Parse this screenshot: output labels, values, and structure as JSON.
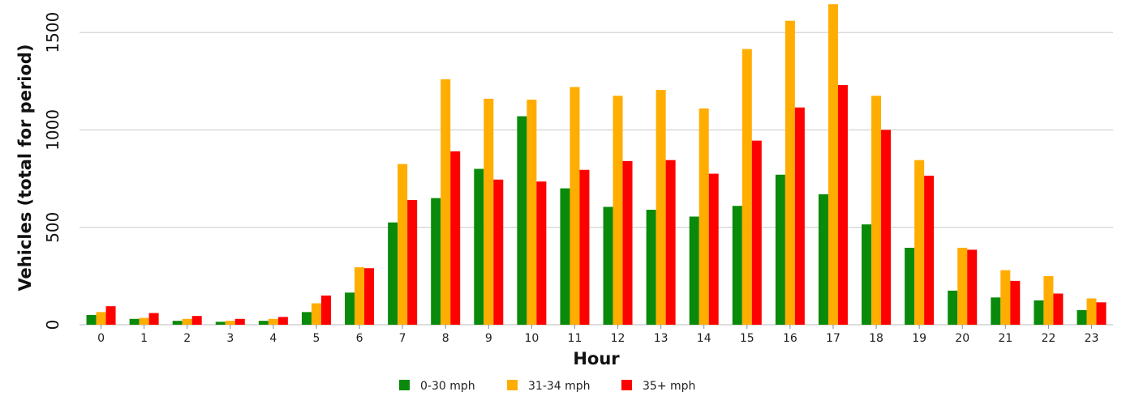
{
  "chart_data": {
    "type": "bar",
    "xlabel": "Hour",
    "ylabel": "Vehicles (total for period)",
    "ylim": [
      0,
      1650
    ],
    "yticks": [
      0,
      500,
      1000,
      1500
    ],
    "grid": true,
    "legend_position": "bottom",
    "categories": [
      "0",
      "1",
      "2",
      "3",
      "4",
      "5",
      "6",
      "7",
      "8",
      "9",
      "10",
      "11",
      "12",
      "13",
      "14",
      "15",
      "16",
      "17",
      "18",
      "19",
      "20",
      "21",
      "22",
      "23"
    ],
    "series": [
      {
        "name": "0-30 mph",
        "color": "#0a8a0a",
        "values": [
          50,
          30,
          20,
          15,
          20,
          65,
          165,
          525,
          650,
          800,
          1070,
          700,
          605,
          590,
          555,
          610,
          770,
          670,
          515,
          395,
          175,
          140,
          125,
          75
        ]
      },
      {
        "name": "31-34 mph",
        "color": "#ffad00",
        "values": [
          65,
          35,
          30,
          20,
          30,
          110,
          295,
          825,
          1260,
          1160,
          1155,
          1220,
          1175,
          1205,
          1110,
          1415,
          1560,
          1645,
          1175,
          845,
          395,
          280,
          250,
          135
        ]
      },
      {
        "name": "35+ mph",
        "color": "#ff0000",
        "values": [
          95,
          60,
          45,
          30,
          40,
          150,
          290,
          640,
          890,
          745,
          735,
          795,
          840,
          845,
          775,
          945,
          1115,
          1230,
          1000,
          765,
          385,
          225,
          160,
          115
        ]
      }
    ]
  }
}
